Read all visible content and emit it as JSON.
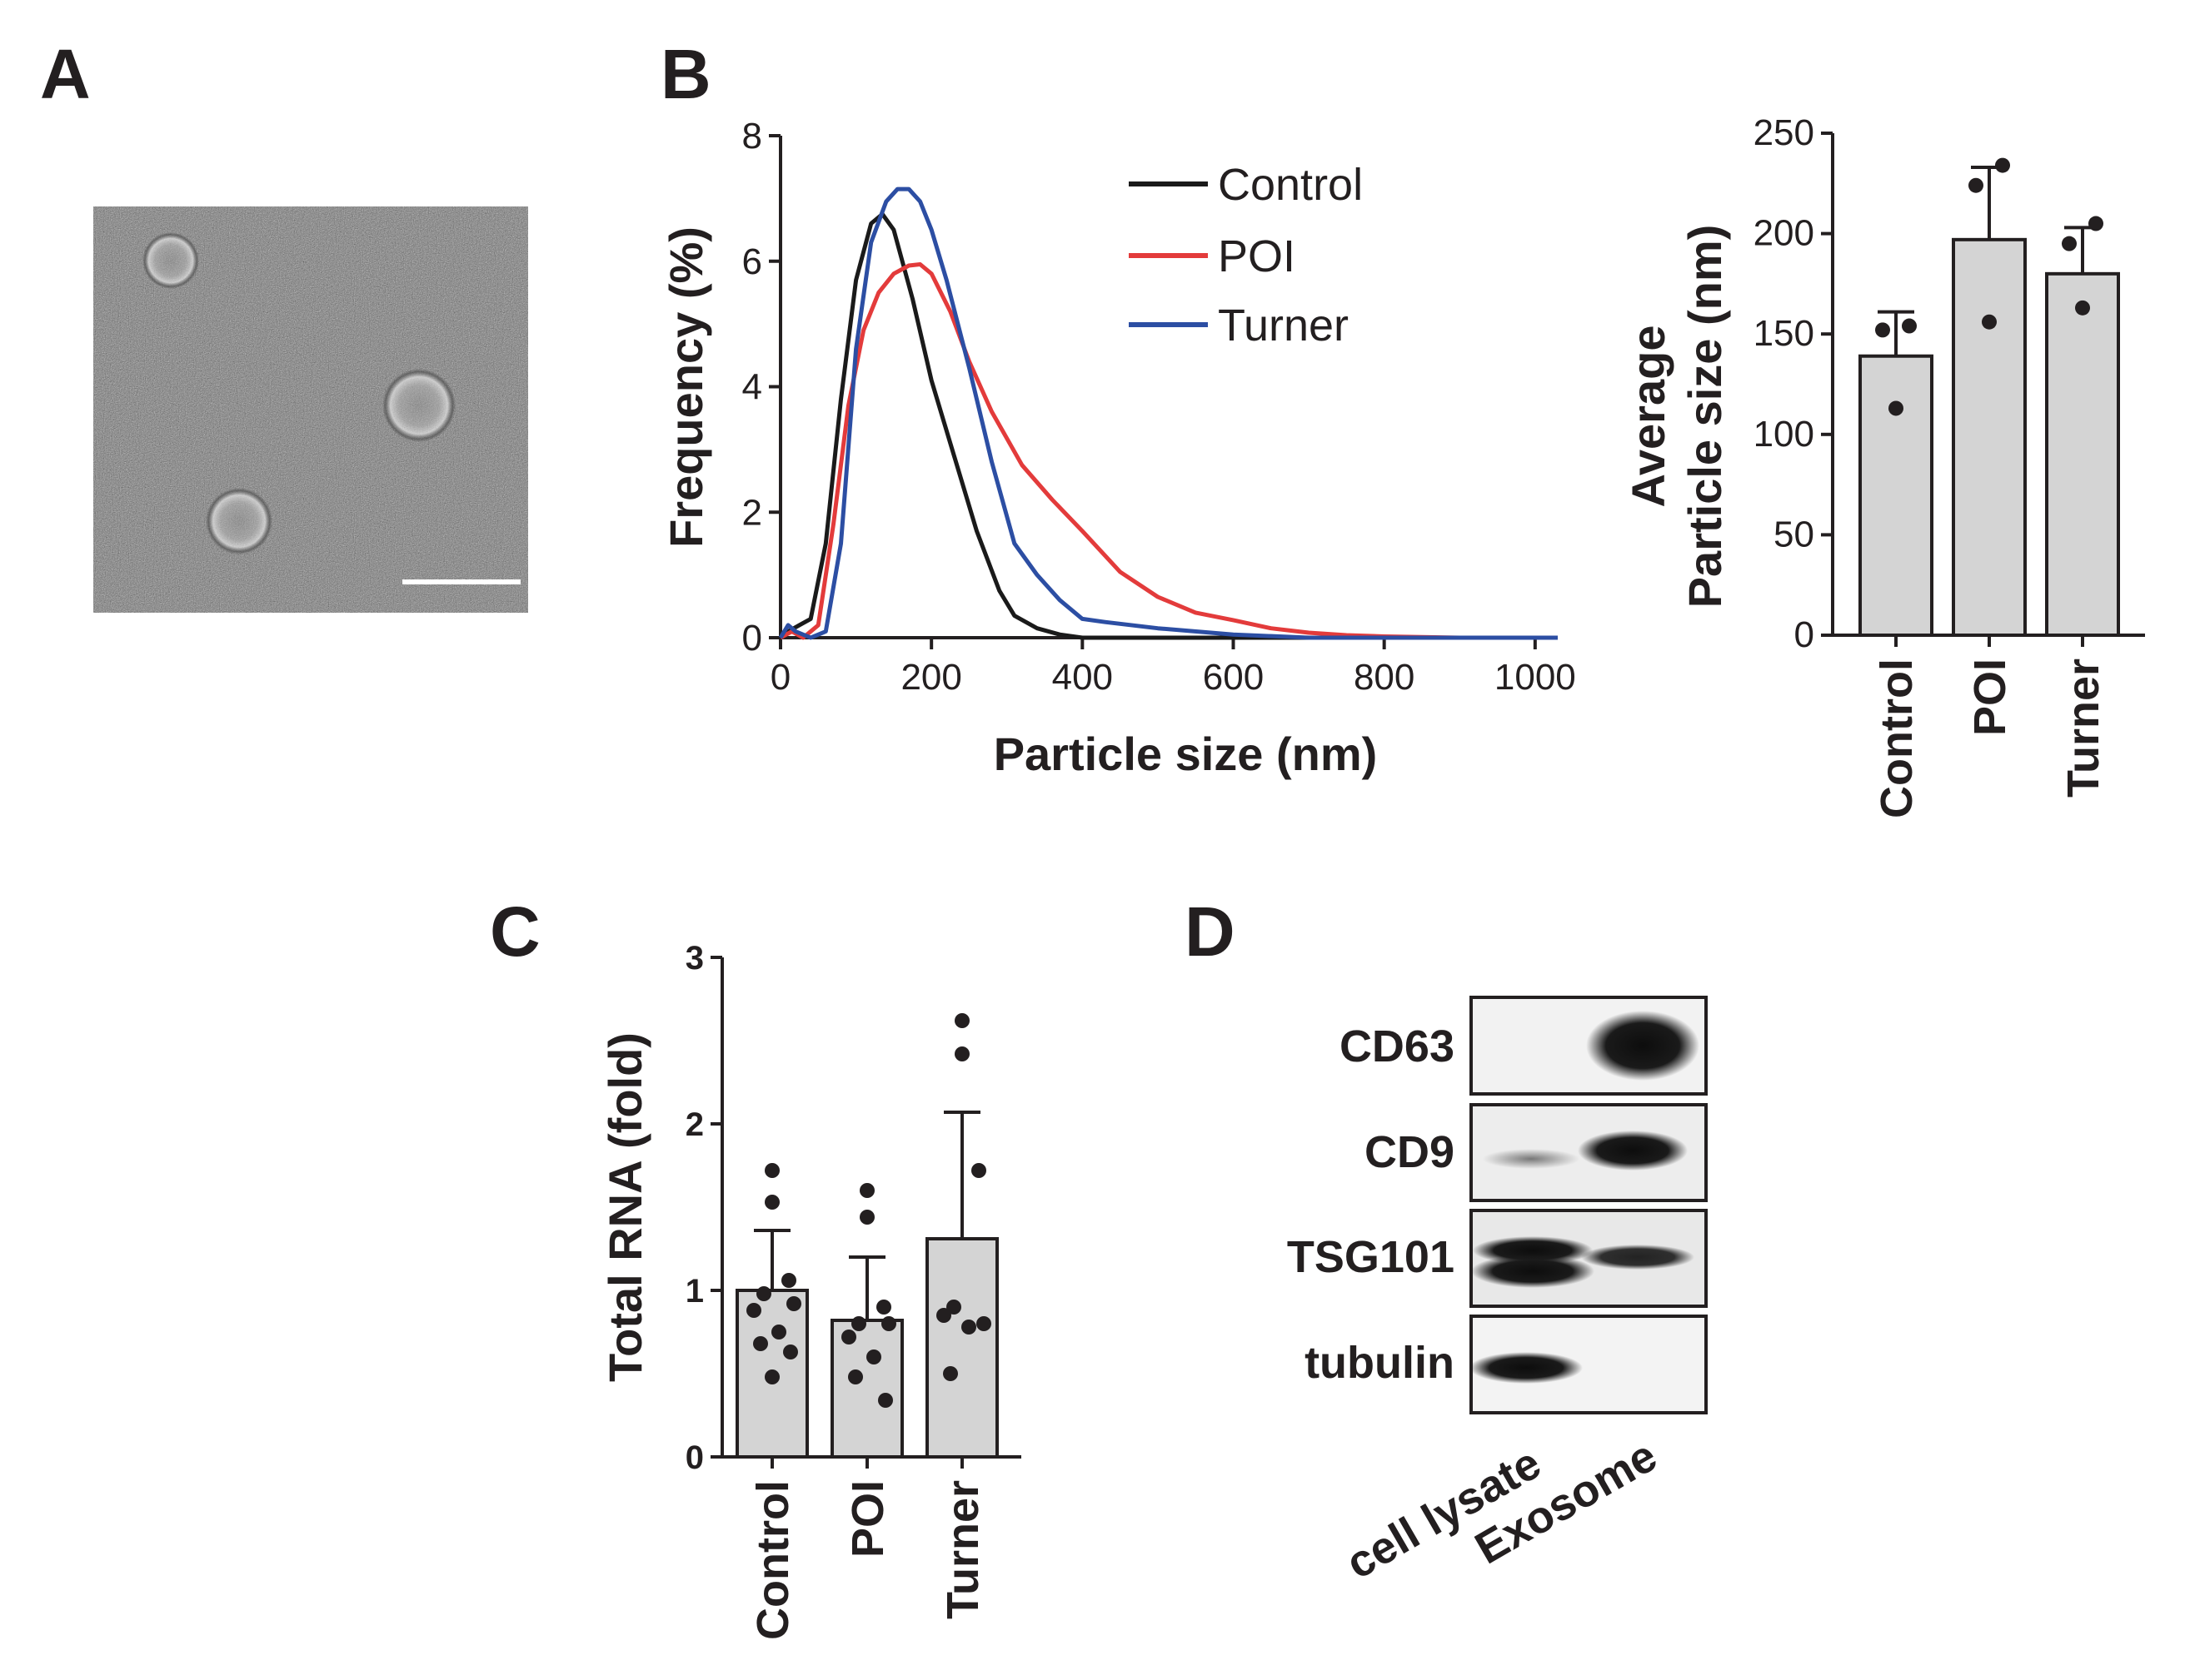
{
  "panels": {
    "A": {
      "label": "A"
    },
    "B": {
      "label": "B"
    },
    "C": {
      "label": "C"
    },
    "D": {
      "label": "D"
    }
  },
  "chart_data": [
    {
      "id": "B-left",
      "type": "line",
      "xlabel": "Particle size (nm)",
      "ylabel": "Frequency (%)",
      "xlim": [
        0,
        1030
      ],
      "ylim": [
        0,
        8
      ],
      "xticks": [
        "0",
        "200",
        "400",
        "600",
        "800",
        "1000"
      ],
      "yticks": [
        "0",
        "2",
        "4",
        "6",
        "8"
      ],
      "legend_position": "top-right",
      "series": [
        {
          "name": "Control",
          "color": "#1a1a1a",
          "x": [
            0,
            10,
            25,
            40,
            60,
            80,
            100,
            120,
            135,
            150,
            175,
            200,
            230,
            260,
            290,
            310,
            340,
            370,
            400,
            450,
            500,
            1030
          ],
          "y": [
            0,
            0.1,
            0.2,
            0.3,
            1.5,
            3.8,
            5.7,
            6.6,
            6.75,
            6.5,
            5.4,
            4.1,
            2.9,
            1.7,
            0.75,
            0.35,
            0.15,
            0.05,
            0,
            0,
            0,
            0
          ]
        },
        {
          "name": "POI",
          "color": "#e33b3b",
          "x": [
            0,
            15,
            30,
            50,
            70,
            90,
            110,
            130,
            150,
            170,
            185,
            200,
            225,
            250,
            280,
            320,
            360,
            400,
            450,
            500,
            550,
            600,
            650,
            700,
            750,
            800,
            900,
            1030
          ],
          "y": [
            0,
            0.1,
            0,
            0.2,
            1.8,
            3.7,
            4.9,
            5.5,
            5.8,
            5.93,
            5.95,
            5.8,
            5.2,
            4.4,
            3.6,
            2.75,
            2.2,
            1.7,
            1.05,
            0.65,
            0.4,
            0.28,
            0.15,
            0.08,
            0.04,
            0.02,
            0,
            0
          ]
        },
        {
          "name": "Turner",
          "color": "#2c4ea3",
          "x": [
            0,
            10,
            20,
            40,
            60,
            80,
            100,
            120,
            140,
            155,
            170,
            185,
            200,
            220,
            250,
            280,
            310,
            340,
            370,
            400,
            430,
            500,
            600,
            700,
            1030
          ],
          "y": [
            0,
            0.2,
            0.1,
            0,
            0.1,
            1.5,
            4.6,
            6.3,
            6.95,
            7.15,
            7.15,
            6.95,
            6.5,
            5.7,
            4.3,
            2.8,
            1.5,
            1.0,
            0.6,
            0.3,
            0.25,
            0.15,
            0.05,
            0,
            0
          ]
        }
      ]
    },
    {
      "id": "B-right",
      "type": "bar",
      "ylabel_line1": "Average",
      "ylabel_line2": "Particle size (nm)",
      "ylim": [
        0,
        250
      ],
      "yticks": [
        "0",
        "50",
        "100",
        "150",
        "200",
        "250"
      ],
      "categories": [
        "Control",
        "POI",
        "Turner"
      ],
      "values": [
        139,
        197,
        180
      ],
      "errors": [
        22,
        36,
        23
      ],
      "points": [
        [
          154,
          152,
          113
        ],
        [
          234,
          224,
          156
        ],
        [
          205,
          195,
          163
        ]
      ]
    },
    {
      "id": "C",
      "type": "bar",
      "ylabel": "Total RNA (fold)",
      "ylim": [
        0,
        3
      ],
      "yticks": [
        "0",
        "1",
        "2",
        "3"
      ],
      "categories": [
        "Control",
        "POI",
        "Turner"
      ],
      "values": [
        1.0,
        0.82,
        1.31
      ],
      "errors": [
        0.36,
        0.38,
        0.76
      ],
      "points": [
        [
          1.72,
          1.53,
          1.06,
          0.98,
          0.92,
          0.88,
          0.75,
          0.68,
          0.63,
          0.48
        ],
        [
          1.6,
          1.44,
          0.9,
          0.8,
          0.8,
          0.72,
          0.6,
          0.48,
          0.34
        ],
        [
          2.62,
          2.42,
          1.72,
          0.9,
          0.8,
          0.85,
          0.78,
          0.5
        ]
      ]
    }
  ],
  "blot": {
    "rows": [
      "CD63",
      "CD9",
      "TSG101",
      "tubulin"
    ],
    "lanes": [
      "cell lysate",
      "Exosome"
    ]
  }
}
